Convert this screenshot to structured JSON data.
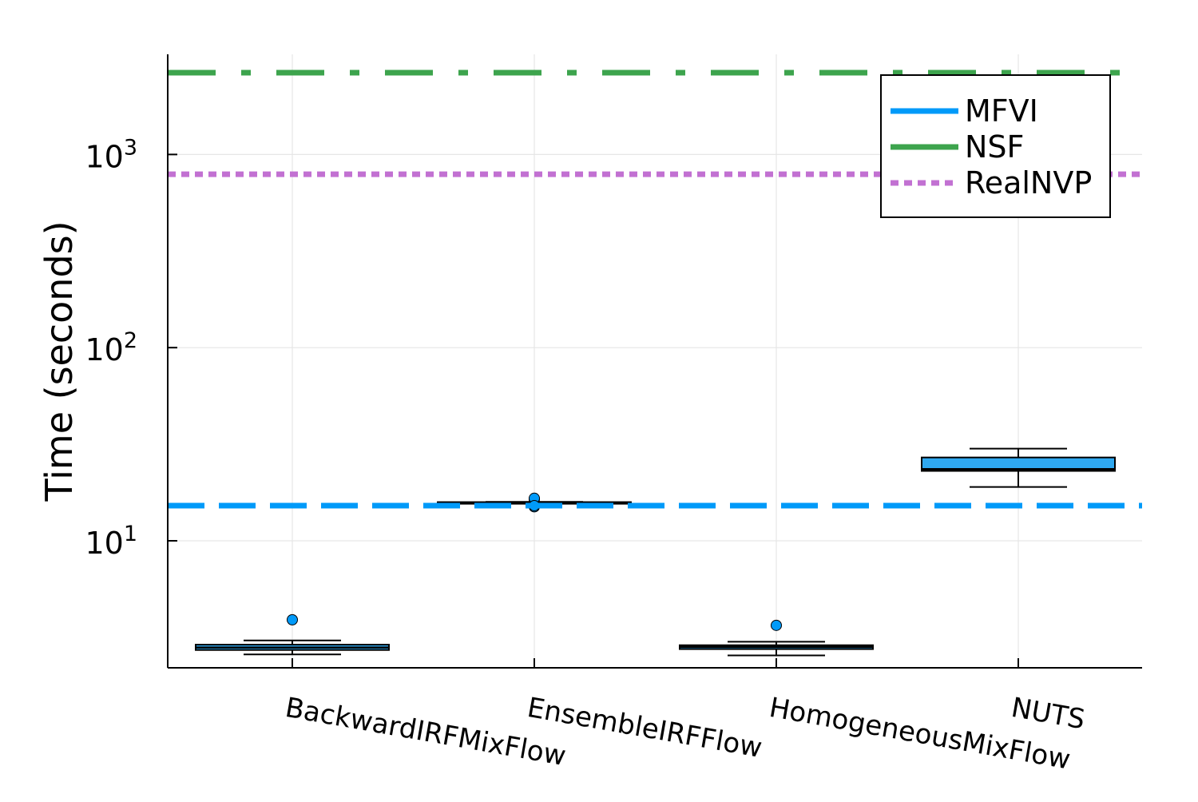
{
  "chart_data": {
    "type": "box",
    "ylabel": "Time (seconds)",
    "xlabel": "",
    "yscale": "log10",
    "ylim": [
      2.2,
      3300
    ],
    "yticks": [
      {
        "value": 10,
        "base": "10",
        "exp": "1"
      },
      {
        "value": 100,
        "base": "10",
        "exp": "2"
      },
      {
        "value": 1000,
        "base": "10",
        "exp": "3"
      }
    ],
    "grid": true,
    "categories": [
      "BackwardIRFMixFlow",
      "EnsembleIRFFlow",
      "HomogeneousMixFlow",
      "NUTS"
    ],
    "boxes": [
      {
        "category": "BackwardIRFMixFlow",
        "whisker_low": 2.58,
        "q1": 2.72,
        "median": 2.8,
        "q3": 2.9,
        "whisker_high": 3.05,
        "outliers": [
          3.9
        ]
      },
      {
        "category": "EnsembleIRFFlow",
        "whisker_low": 15.7,
        "q1": 15.75,
        "median": 15.8,
        "q3": 15.85,
        "whisker_high": 15.9,
        "outliers": [
          16.4,
          16.6,
          15.0,
          15.2
        ]
      },
      {
        "category": "HomogeneousMixFlow",
        "whisker_low": 2.55,
        "q1": 2.75,
        "median": 2.82,
        "q3": 2.88,
        "whisker_high": 3.0,
        "outliers": [
          3.65
        ]
      },
      {
        "category": "NUTS",
        "whisker_low": 19.0,
        "q1": 23.0,
        "median": 23.5,
        "q3": 27.0,
        "whisker_high": 30.0,
        "outliers": []
      }
    ],
    "box_color": "#2fa8f0",
    "outline_color": "#000000",
    "reference_lines": [
      {
        "name": "MFVI",
        "value": 15.2,
        "color": "#009af9",
        "style": "dash"
      },
      {
        "name": "NSF",
        "value": 2650,
        "color": "#3da44d",
        "style": "dashdot"
      },
      {
        "name": "RealNVP",
        "value": 790,
        "color": "#c271d2",
        "style": "dot"
      }
    ],
    "legend": {
      "position": "top-right",
      "entries": [
        "MFVI",
        "NSF",
        "RealNVP"
      ]
    }
  }
}
